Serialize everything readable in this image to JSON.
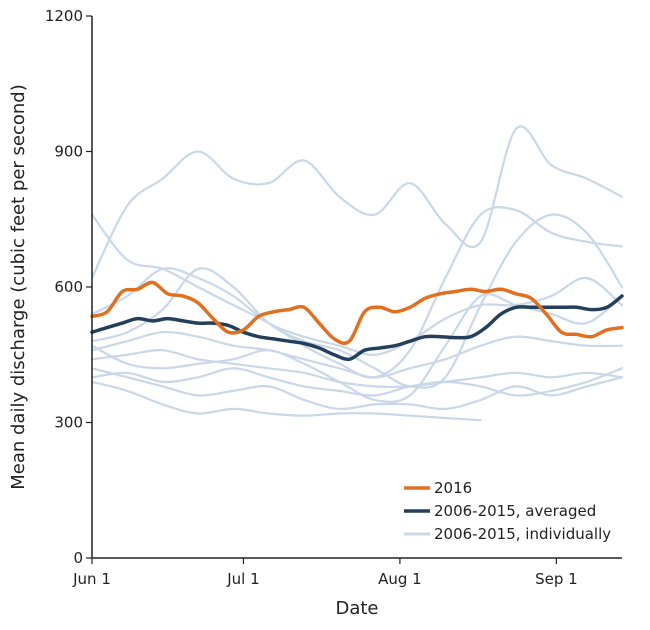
{
  "chart_data": {
    "type": "line",
    "title": "",
    "xlabel": "Date",
    "ylabel": "Mean daily discharge (cubic feet per second)",
    "x_axis_type": "date",
    "xlim": [
      "2016-06-01",
      "2016-09-14"
    ],
    "ylim": [
      0,
      1200
    ],
    "x_ticks": [
      {
        "date": "2016-06-01",
        "label": "Jun 1"
      },
      {
        "date": "2016-07-01",
        "label": "Jul 1"
      },
      {
        "date": "2016-08-01",
        "label": "Aug 1"
      },
      {
        "date": "2016-09-01",
        "label": "Sep 1"
      }
    ],
    "y_ticks": [
      0,
      300,
      600,
      900,
      1200
    ],
    "grid": false,
    "legend_position": "bottom-right",
    "colors": {
      "series_2016": "#E07020",
      "series_averaged": "#243F5C",
      "series_individual": "#C9D7E8"
    },
    "series": [
      {
        "name": "2016",
        "style": "main",
        "x": [
          "2016-06-01",
          "2016-06-04",
          "2016-06-07",
          "2016-06-10",
          "2016-06-13",
          "2016-06-16",
          "2016-06-19",
          "2016-06-22",
          "2016-06-25",
          "2016-06-28",
          "2016-07-01",
          "2016-07-04",
          "2016-07-07",
          "2016-07-10",
          "2016-07-13",
          "2016-07-16",
          "2016-07-19",
          "2016-07-22",
          "2016-07-25",
          "2016-07-28",
          "2016-07-31",
          "2016-08-03",
          "2016-08-06",
          "2016-08-09",
          "2016-08-12",
          "2016-08-15",
          "2016-08-18",
          "2016-08-21",
          "2016-08-24",
          "2016-08-27",
          "2016-08-30",
          "2016-09-02",
          "2016-09-05",
          "2016-09-08",
          "2016-09-11",
          "2016-09-14"
        ],
        "y": [
          535,
          545,
          590,
          595,
          610,
          585,
          580,
          565,
          530,
          500,
          505,
          535,
          545,
          550,
          555,
          520,
          485,
          480,
          545,
          555,
          545,
          555,
          575,
          585,
          590,
          595,
          590,
          595,
          585,
          575,
          540,
          500,
          495,
          490,
          505,
          510
        ]
      },
      {
        "name": "2006-2015, averaged",
        "style": "avg",
        "x": [
          "2016-06-01",
          "2016-06-04",
          "2016-06-07",
          "2016-06-10",
          "2016-06-13",
          "2016-06-16",
          "2016-06-19",
          "2016-06-22",
          "2016-06-25",
          "2016-06-28",
          "2016-07-01",
          "2016-07-04",
          "2016-07-07",
          "2016-07-10",
          "2016-07-13",
          "2016-07-16",
          "2016-07-19",
          "2016-07-22",
          "2016-07-25",
          "2016-07-28",
          "2016-07-31",
          "2016-08-03",
          "2016-08-06",
          "2016-08-09",
          "2016-08-12",
          "2016-08-15",
          "2016-08-18",
          "2016-08-21",
          "2016-08-24",
          "2016-08-27",
          "2016-08-30",
          "2016-09-02",
          "2016-09-05",
          "2016-09-08",
          "2016-09-11",
          "2016-09-14"
        ],
        "y": [
          500,
          510,
          520,
          530,
          525,
          530,
          525,
          520,
          520,
          515,
          500,
          490,
          485,
          480,
          475,
          465,
          450,
          440,
          460,
          465,
          470,
          480,
          490,
          490,
          488,
          490,
          510,
          540,
          555,
          555,
          555,
          555,
          555,
          550,
          555,
          580
        ]
      },
      {
        "name": "2006-2015, individually",
        "style": "individual",
        "x": [
          "2016-06-01",
          "2016-06-08",
          "2016-06-15",
          "2016-06-22",
          "2016-06-29",
          "2016-07-06",
          "2016-07-13",
          "2016-07-20",
          "2016-07-27",
          "2016-08-03",
          "2016-08-10",
          "2016-08-17",
          "2016-08-24",
          "2016-08-31",
          "2016-09-07",
          "2016-09-14"
        ],
        "y": [
          620,
          780,
          840,
          900,
          840,
          830,
          880,
          800,
          760,
          830,
          740,
          700,
          950,
          870,
          840,
          800
        ]
      },
      {
        "name": "",
        "style": "individual",
        "x": [
          "2016-06-01",
          "2016-06-08",
          "2016-06-15",
          "2016-06-22",
          "2016-06-29",
          "2016-07-06",
          "2016-07-13",
          "2016-07-20",
          "2016-07-27",
          "2016-08-03",
          "2016-08-10",
          "2016-08-17",
          "2016-08-24",
          "2016-08-31",
          "2016-09-07",
          "2016-09-14"
        ],
        "y": [
          760,
          660,
          640,
          600,
          560,
          520,
          470,
          430,
          400,
          460,
          620,
          760,
          770,
          720,
          700,
          690
        ]
      },
      {
        "name": "",
        "style": "individual",
        "x": [
          "2016-06-01",
          "2016-06-08",
          "2016-06-15",
          "2016-06-22",
          "2016-06-29",
          "2016-07-06",
          "2016-07-13",
          "2016-07-20",
          "2016-07-27",
          "2016-08-03",
          "2016-08-10",
          "2016-08-17",
          "2016-08-24",
          "2016-08-31",
          "2016-09-07",
          "2016-09-14"
        ],
        "y": [
          540,
          580,
          640,
          620,
          580,
          520,
          490,
          470,
          450,
          480,
          530,
          560,
          560,
          580,
          620,
          560
        ]
      },
      {
        "name": "",
        "style": "individual",
        "x": [
          "2016-06-01",
          "2016-06-08",
          "2016-06-15",
          "2016-06-22",
          "2016-06-29",
          "2016-07-06",
          "2016-07-13",
          "2016-07-20",
          "2016-07-27",
          "2016-08-03",
          "2016-08-10",
          "2016-08-17",
          "2016-08-24",
          "2016-08-31",
          "2016-09-07",
          "2016-09-14"
        ],
        "y": [
          480,
          500,
          550,
          640,
          600,
          520,
          480,
          460,
          420,
          380,
          400,
          560,
          700,
          760,
          720,
          600
        ]
      },
      {
        "name": "",
        "style": "individual",
        "x": [
          "2016-06-01",
          "2016-06-08",
          "2016-06-15",
          "2016-06-22",
          "2016-06-29",
          "2016-07-06",
          "2016-07-13",
          "2016-07-20",
          "2016-07-27",
          "2016-08-03",
          "2016-08-10",
          "2016-08-17",
          "2016-08-24",
          "2016-08-31",
          "2016-09-07",
          "2016-09-14"
        ],
        "y": [
          460,
          480,
          500,
          490,
          470,
          460,
          440,
          420,
          400,
          420,
          440,
          470,
          490,
          480,
          470,
          470
        ]
      },
      {
        "name": "",
        "style": "individual",
        "x": [
          "2016-06-01",
          "2016-06-08",
          "2016-06-15",
          "2016-06-22",
          "2016-06-29",
          "2016-07-06",
          "2016-07-13",
          "2016-07-20",
          "2016-07-27",
          "2016-08-03",
          "2016-08-10",
          "2016-08-17",
          "2016-08-24",
          "2016-08-31",
          "2016-09-07",
          "2016-09-14"
        ],
        "y": [
          440,
          450,
          460,
          440,
          430,
          420,
          410,
          390,
          380,
          380,
          390,
          400,
          410,
          400,
          410,
          400
        ]
      },
      {
        "name": "",
        "style": "individual",
        "x": [
          "2016-06-01",
          "2016-06-08",
          "2016-06-15",
          "2016-06-22",
          "2016-06-29",
          "2016-07-06",
          "2016-07-13",
          "2016-07-20",
          "2016-07-27",
          "2016-08-03",
          "2016-08-10",
          "2016-08-17",
          "2016-08-24",
          "2016-08-31",
          "2016-09-07",
          "2016-09-14"
        ],
        "y": [
          400,
          410,
          390,
          400,
          420,
          400,
          380,
          370,
          360,
          380,
          390,
          380,
          360,
          370,
          390,
          420
        ]
      },
      {
        "name": "",
        "style": "individual",
        "x": [
          "2016-06-01",
          "2016-06-08",
          "2016-06-15",
          "2016-06-22",
          "2016-06-29",
          "2016-07-06",
          "2016-07-13",
          "2016-07-20",
          "2016-07-27",
          "2016-08-03",
          "2016-08-10",
          "2016-08-17",
          "2016-08-24",
          "2016-08-31",
          "2016-09-07",
          "2016-09-14"
        ],
        "y": [
          420,
          400,
          380,
          360,
          370,
          380,
          350,
          330,
          340,
          340,
          330,
          350,
          380,
          360,
          380,
          400
        ]
      },
      {
        "name": "",
        "style": "individual",
        "x": [
          "2016-06-01",
          "2016-06-08",
          "2016-06-15",
          "2016-06-22",
          "2016-06-29",
          "2016-07-06",
          "2016-07-13",
          "2016-07-20",
          "2016-07-27",
          "2016-08-03",
          "2016-08-10",
          "2016-08-17"
        ],
        "y": [
          390,
          370,
          340,
          320,
          330,
          320,
          315,
          320,
          320,
          315,
          310,
          305
        ]
      },
      {
        "name": "",
        "style": "individual",
        "x": [
          "2016-06-01",
          "2016-06-08",
          "2016-06-15",
          "2016-06-22",
          "2016-06-29",
          "2016-07-06",
          "2016-07-13",
          "2016-07-20",
          "2016-07-27",
          "2016-08-03",
          "2016-08-10",
          "2016-08-17",
          "2016-08-24",
          "2016-08-31",
          "2016-09-07",
          "2016-09-14"
        ],
        "y": [
          470,
          430,
          420,
          430,
          440,
          460,
          430,
          390,
          350,
          360,
          470,
          580,
          560,
          540,
          520,
          580
        ]
      }
    ]
  }
}
